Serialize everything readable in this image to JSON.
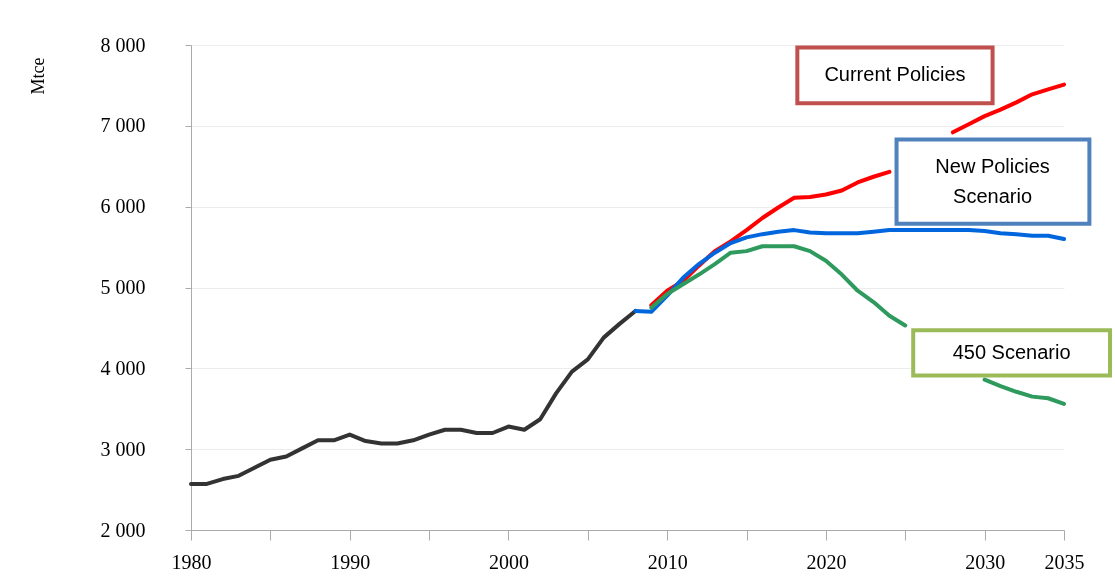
{
  "chart_data": {
    "type": "line",
    "ylabel": "Mtce",
    "xlim": [
      1980,
      2035
    ],
    "ylim": [
      2000,
      8000
    ],
    "xticks": [
      1980,
      {
        "value": 1985,
        "label": null
      },
      1990,
      {
        "value": 1995,
        "label": null
      },
      2000,
      {
        "value": 2005,
        "label": null
      },
      2010,
      {
        "value": 2015,
        "label": null
      },
      2020,
      {
        "value": 2025,
        "label": null
      },
      2030,
      2035
    ],
    "yticks": [
      {
        "value": 2000,
        "label": "2 000"
      },
      {
        "value": 3000,
        "label": "3 000"
      },
      {
        "value": 4000,
        "label": "4 000"
      },
      {
        "value": 5000,
        "label": "5 000"
      },
      {
        "value": 6000,
        "label": "6 000"
      },
      {
        "value": 7000,
        "label": "7 000"
      },
      {
        "value": 8000,
        "label": "8 000"
      }
    ],
    "grid": "y",
    "series": [
      {
        "color": "#333333",
        "x": [
          1980,
          1981,
          1982,
          1983,
          1984,
          1985,
          1986,
          1987,
          1988,
          1989,
          1990,
          1991,
          1992,
          1993,
          1994,
          1995,
          1996,
          1997,
          1998,
          1999,
          2000,
          2001,
          2002,
          2003,
          2004,
          2005,
          2006,
          2007,
          2008
        ],
        "values": [
          2570,
          2570,
          2630,
          2670,
          2770,
          2870,
          2910,
          3010,
          3110,
          3110,
          3180,
          3100,
          3070,
          3070,
          3110,
          3180,
          3240,
          3240,
          3200,
          3200,
          3280,
          3240,
          3370,
          3690,
          3960,
          4110,
          4380,
          4550,
          4710
        ]
      },
      {
        "name": "Current Policies",
        "color": "#ff0000",
        "x": [
          2009,
          2010,
          2011,
          2012,
          2013,
          2014,
          2015,
          2016,
          2017,
          2018,
          2019,
          2020,
          2021,
          2022,
          2023,
          2024,
          2025,
          2026,
          2027,
          2028,
          2029,
          2030,
          2031,
          2032,
          2033,
          2034,
          2035
        ],
        "values": [
          4780,
          4960,
          5080,
          5270,
          5450,
          5570,
          5710,
          5860,
          5990,
          6110,
          6120,
          6150,
          6200,
          6300,
          6370,
          6430,
          null,
          null,
          null,
          6920,
          7020,
          7120,
          7200,
          7290,
          7390,
          7450,
          7510
        ]
      },
      {
        "name": "New Policies Scenario",
        "color": "#0066dd",
        "x": [
          2008,
          2009,
          2010,
          2011,
          2012,
          2013,
          2014,
          2015,
          2016,
          2017,
          2018,
          2019,
          2020,
          2021,
          2022,
          2023,
          2024,
          2025,
          2026,
          2027,
          2028,
          2029,
          2030,
          2031,
          2032,
          2033,
          2034,
          2035
        ],
        "values": [
          4710,
          4700,
          4900,
          5120,
          5290,
          5430,
          5550,
          5620,
          5660,
          5690,
          5710,
          5680,
          5670,
          5670,
          5670,
          5690,
          5710,
          5710,
          5710,
          5710,
          5710,
          5710,
          5700,
          5670,
          5660,
          5640,
          5640,
          5600
        ]
      },
      {
        "name": "450 Scenario",
        "color": "#2e9a5e",
        "x": [
          2009,
          2010,
          2011,
          2012,
          2013,
          2014,
          2015,
          2016,
          2017,
          2018,
          2019,
          2020,
          2021,
          2022,
          2023,
          2024,
          2025,
          2026,
          2027,
          2028,
          2029,
          2030,
          2031,
          2032,
          2033,
          2034,
          2035
        ],
        "values": [
          4750,
          4920,
          5040,
          5160,
          5290,
          5430,
          5450,
          5510,
          5510,
          5510,
          5450,
          5330,
          5160,
          4960,
          4820,
          4650,
          4530,
          null,
          null,
          null,
          null,
          3860,
          3780,
          3710,
          3650,
          3630,
          3560
        ]
      }
    ]
  }
}
